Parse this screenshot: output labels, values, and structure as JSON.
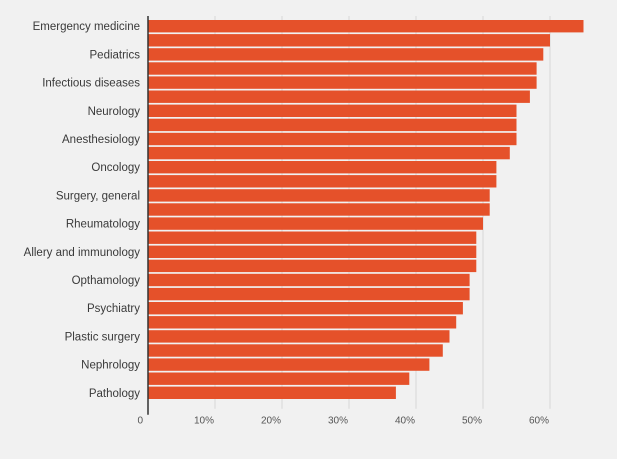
{
  "chart_data": {
    "type": "bar",
    "orientation": "horizontal",
    "title": "",
    "xlabel": "",
    "ylabel": "",
    "labeled_categories": [
      "Emergency medicine",
      "Pediatrics",
      "Infectious diseases",
      "Neurology",
      "Anesthesiology",
      "Oncology",
      "Surgery, general",
      "Rheumatology",
      "Allery and immunology",
      "Opthamology",
      "Psychiatry",
      "Plastic surgery",
      "Nephrology",
      "Pathology"
    ],
    "label_every": 2,
    "values": [
      65,
      60,
      59,
      58,
      58,
      57,
      55,
      55,
      55,
      54,
      52,
      52,
      51,
      51,
      50,
      49,
      49,
      49,
      48,
      48,
      47,
      46,
      45,
      44,
      42,
      39,
      37
    ],
    "xlim": [
      0,
      65
    ],
    "xticks": [
      0,
      10,
      20,
      30,
      40,
      50,
      60
    ],
    "xtick_labels": [
      "0",
      "10%",
      "20%",
      "30%",
      "40%",
      "50%",
      "60%"
    ],
    "grid": "vertical",
    "bar_color": "#e5512a",
    "background": "#f1f1f1"
  }
}
